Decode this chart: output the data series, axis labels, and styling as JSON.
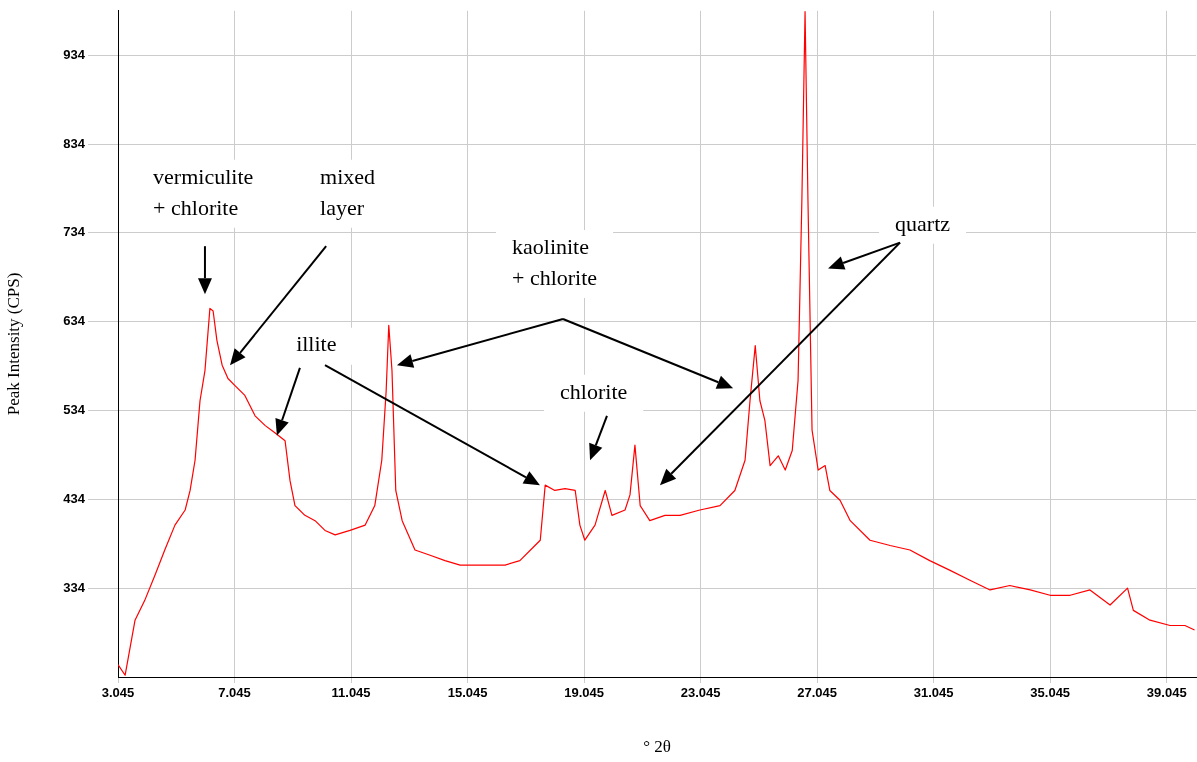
{
  "chart_data": {
    "type": "line",
    "xlabel": "° 2θ",
    "ylabel": "Peak Intensity (CPS)",
    "xlim": [
      3.045,
      40.05
    ],
    "ylim": [
      234,
      984
    ],
    "xticks": [
      3.045,
      7.045,
      11.045,
      15.045,
      19.045,
      23.045,
      27.045,
      31.045,
      35.045,
      39.045
    ],
    "yticks": [
      334,
      434,
      534,
      634,
      734,
      834,
      934
    ],
    "grid": true,
    "legend": false,
    "marker": "none",
    "x": [
      3.045,
      3.29,
      3.63,
      3.96,
      4.32,
      4.65,
      5.0,
      5.35,
      5.52,
      5.69,
      5.86,
      6.03,
      6.2,
      6.31,
      6.44,
      6.62,
      6.82,
      7.06,
      7.4,
      7.75,
      8.1,
      8.43,
      8.78,
      8.95,
      9.12,
      9.46,
      9.81,
      10.15,
      10.5,
      11.01,
      11.53,
      11.86,
      12.1,
      12.25,
      12.34,
      12.45,
      12.58,
      12.8,
      13.24,
      13.76,
      14.27,
      14.79,
      15.3,
      15.82,
      16.33,
      16.84,
      17.36,
      17.54,
      17.71,
      18.04,
      18.39,
      18.74,
      18.9,
      19.07,
      19.42,
      19.77,
      20.0,
      20.45,
      20.62,
      20.79,
      20.97,
      21.3,
      21.82,
      22.34,
      23.02,
      23.71,
      24.22,
      24.57,
      24.74,
      24.92,
      25.08,
      25.25,
      25.43,
      25.71,
      25.95,
      26.19,
      26.39,
      26.52,
      26.63,
      26.73,
      26.87,
      27.08,
      27.32,
      27.48,
      27.83,
      28.18,
      28.86,
      29.55,
      30.23,
      30.91,
      31.61,
      32.29,
      32.98,
      33.66,
      34.36,
      35.04,
      35.73,
      36.41,
      37.1,
      37.7,
      37.9,
      38.47,
      39.16,
      39.67,
      40.0
    ],
    "series": [
      {
        "color": "#ff0000",
        "values": [
          248,
          236,
          298,
          320,
          349,
          377,
          405,
          422,
          444,
          478,
          545,
          579,
          649,
          646,
          613,
          585,
          570,
          562,
          551,
          528,
          517,
          509,
          500,
          455,
          427,
          416,
          410,
          399,
          394,
          399,
          405,
          427,
          478,
          556,
          630,
          579,
          444,
          410,
          377,
          371,
          365,
          360,
          360,
          360,
          360,
          365,
          382,
          388,
          450,
          444,
          446,
          444,
          405,
          388,
          405,
          444,
          416,
          422,
          439,
          495,
          427,
          410,
          416,
          416,
          422,
          427,
          444,
          478,
          545,
          607,
          545,
          523,
          472,
          483,
          467,
          489,
          568,
          770,
          983,
          770,
          512,
          467,
          472,
          444,
          433,
          410,
          388,
          382,
          377,
          365,
          354,
          343,
          332,
          337,
          332,
          326,
          326,
          332,
          315,
          334,
          309,
          298,
          292,
          292,
          287
        ]
      }
    ],
    "annotations": [
      "vermiculite\n+ chlorite",
      "mixed\nlayer",
      "illite",
      "kaolinite\n+ chlorite",
      "chlorite",
      "quartz"
    ]
  }
}
